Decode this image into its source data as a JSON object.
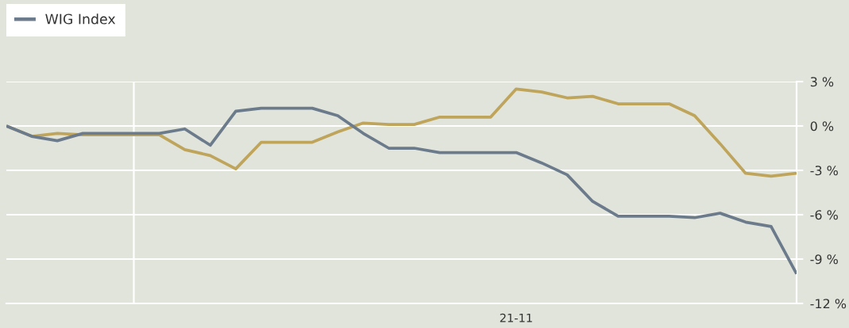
{
  "chart_data": {
    "type": "line",
    "categories": [
      null,
      null,
      null,
      null,
      null,
      null,
      null,
      null,
      null,
      null,
      null,
      null,
      null,
      null,
      null,
      null,
      null,
      null,
      null,
      null,
      "21-11",
      null,
      null,
      null,
      null,
      null,
      null,
      null,
      null,
      null,
      null,
      null
    ],
    "series": [
      {
        "color": "#bfa45b",
        "values": [
          0,
          -0.7,
          -0.5,
          -0.6,
          -0.6,
          -0.6,
          -0.6,
          -1.6,
          -2.0,
          -2.9,
          -1.1,
          -1.1,
          -1.1,
          -0.4,
          0.2,
          0.1,
          0.1,
          0.6,
          0.6,
          0.6,
          2.5,
          2.3,
          1.9,
          2.0,
          1.5,
          1.5,
          1.5,
          0.7,
          -1.2,
          -3.2,
          -3.4,
          -3.2
        ]
      },
      {
        "name": "WIG Index",
        "color": "#6c7b8c",
        "values": [
          0,
          -0.7,
          -1.0,
          -0.5,
          -0.5,
          -0.5,
          -0.5,
          -0.2,
          -1.3,
          1.0,
          1.2,
          1.2,
          1.2,
          0.7,
          -0.5,
          -1.5,
          -1.5,
          -1.8,
          -1.8,
          -1.8,
          -1.8,
          -2.5,
          -3.3,
          -5.1,
          -6.1,
          -6.1,
          -6.1,
          -6.2,
          -5.9,
          -6.5,
          -6.8,
          -10.0
        ]
      }
    ],
    "ylim": [
      -12,
      3
    ],
    "yticks": [
      {
        "value": 3,
        "label": "3 %"
      },
      {
        "value": 0,
        "label": "0 %"
      },
      {
        "value": -3,
        "label": "-3 %"
      },
      {
        "value": -6,
        "label": "-6 %"
      },
      {
        "value": -9,
        "label": "-9 %"
      },
      {
        "value": -12,
        "label": "-12 %"
      }
    ],
    "grid": "y",
    "legend": "top left"
  }
}
